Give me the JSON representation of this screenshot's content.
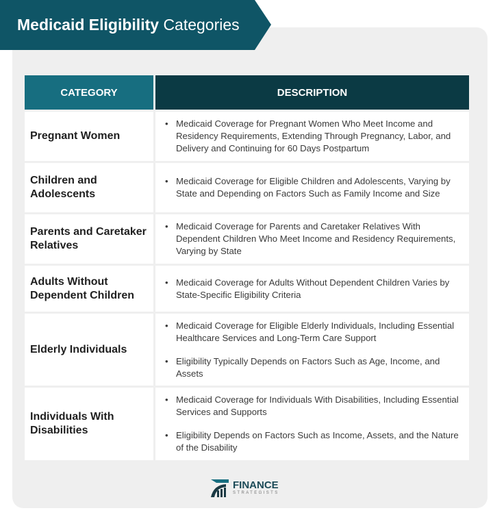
{
  "title": {
    "bold": "Medicaid Eligibility",
    "regular": "Categories"
  },
  "table": {
    "headers": [
      "CATEGORY",
      "DESCRIPTION"
    ],
    "rows": [
      {
        "category": "Pregnant Women",
        "bullets": [
          "Medicaid Coverage for Pregnant Women Who Meet Income and Residency Requirements, Extending Through Pregnancy, Labor, and Delivery and Continuing for 60 Days Postpartum"
        ]
      },
      {
        "category": "Children and Adolescents",
        "bullets": [
          "Medicaid Coverage for Eligible Children and Adolescents, Varying by State and Depending on Factors Such as Family Income and Size"
        ]
      },
      {
        "category": "Parents and Caretaker Relatives",
        "bullets": [
          "Medicaid Coverage for Parents and Caretaker Relatives With Dependent Children Who Meet Income and Residency Requirements, Varying by State"
        ]
      },
      {
        "category": "Adults Without Dependent Children",
        "bullets": [
          "Medicaid Coverage for Adults Without Dependent Children Varies by State-Specific Eligibility Criteria"
        ]
      },
      {
        "category": "Elderly Individuals",
        "bullets": [
          "Medicaid Coverage for Eligible Elderly Individuals, Including Essential Healthcare Services and Long-Term Care Support",
          "Eligibility Typically Depends on Factors Such as Age, Income, and Assets"
        ]
      },
      {
        "category": "Individuals With Disabilities",
        "bullets": [
          "Medicaid Coverage for Individuals With Disabilities, Including Essential Services and Supports",
          "Eligibility Depends on Factors Such as Income, Assets, and the Nature of the Disability"
        ]
      }
    ]
  },
  "logo": {
    "line1": "FINANCE",
    "line2": "STRATEGISTS"
  },
  "colors": {
    "banner": "#0f5566",
    "header_category": "#176e80",
    "header_description": "#0b3a44",
    "card": "#efefef"
  }
}
